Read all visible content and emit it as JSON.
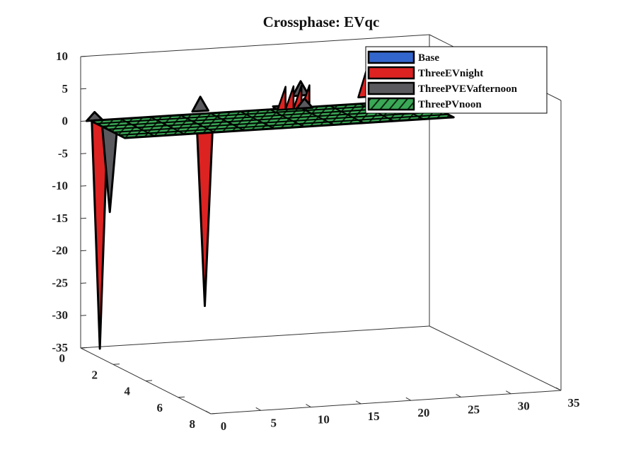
{
  "chart_data": {
    "type": "surface3d",
    "title": "Crossphase: EVqc",
    "xlabel": "",
    "ylabel": "",
    "zlabel": "",
    "xlim": [
      0,
      35
    ],
    "ylim": [
      0,
      8
    ],
    "zlim": [
      -35,
      10
    ],
    "xticks": [
      "0",
      "5",
      "10",
      "15",
      "20",
      "25",
      "30",
      "35"
    ],
    "yticks": [
      "0",
      "2",
      "4",
      "6",
      "8"
    ],
    "zticks": [
      "10",
      "5",
      "0",
      "-5",
      "-10",
      "-15",
      "-20",
      "-25",
      "-30",
      "-35"
    ],
    "legend": {
      "placement": "top-right",
      "entries": [
        "Base",
        "ThreeEVnight",
        "ThreePVEVafternoon",
        "ThreePVnoon"
      ]
    },
    "series": [
      {
        "name": "Base",
        "color": "#3366cc",
        "values": []
      },
      {
        "name": "ThreeEVnight",
        "color": "#dd2222",
        "values": [
          {
            "x": 1,
            "y": 1,
            "z": -35
          },
          {
            "x": 10,
            "y": 1,
            "z": -28
          },
          {
            "x": 1,
            "y": 0,
            "z": -4
          },
          {
            "x": 20,
            "y": 0,
            "z": -4
          },
          {
            "x": 21,
            "y": 0,
            "z": -4
          },
          {
            "x": 22,
            "y": 0,
            "z": -4
          },
          {
            "x": 29,
            "y": 0,
            "z": -3
          },
          {
            "x": 30,
            "y": 0,
            "z": -3
          },
          {
            "x": 31,
            "y": 0,
            "z": -3
          },
          {
            "x": 32,
            "y": 0,
            "z": -3
          }
        ]
      },
      {
        "name": "ThreePVEVafternoon",
        "color": "#5a5a5e",
        "values": [
          {
            "x": 1,
            "y": 0,
            "z": 1
          },
          {
            "x": 2,
            "y": 0,
            "z": -14
          },
          {
            "x": 11,
            "y": 0,
            "z": 2
          },
          {
            "x": 23,
            "y": 0,
            "z": -8
          },
          {
            "x": 24,
            "y": 0,
            "z": 2
          },
          {
            "x": 33,
            "y": 0,
            "z": -4
          }
        ]
      },
      {
        "name": "ThreePVnoon",
        "color": "#3aa856",
        "values": []
      }
    ]
  }
}
